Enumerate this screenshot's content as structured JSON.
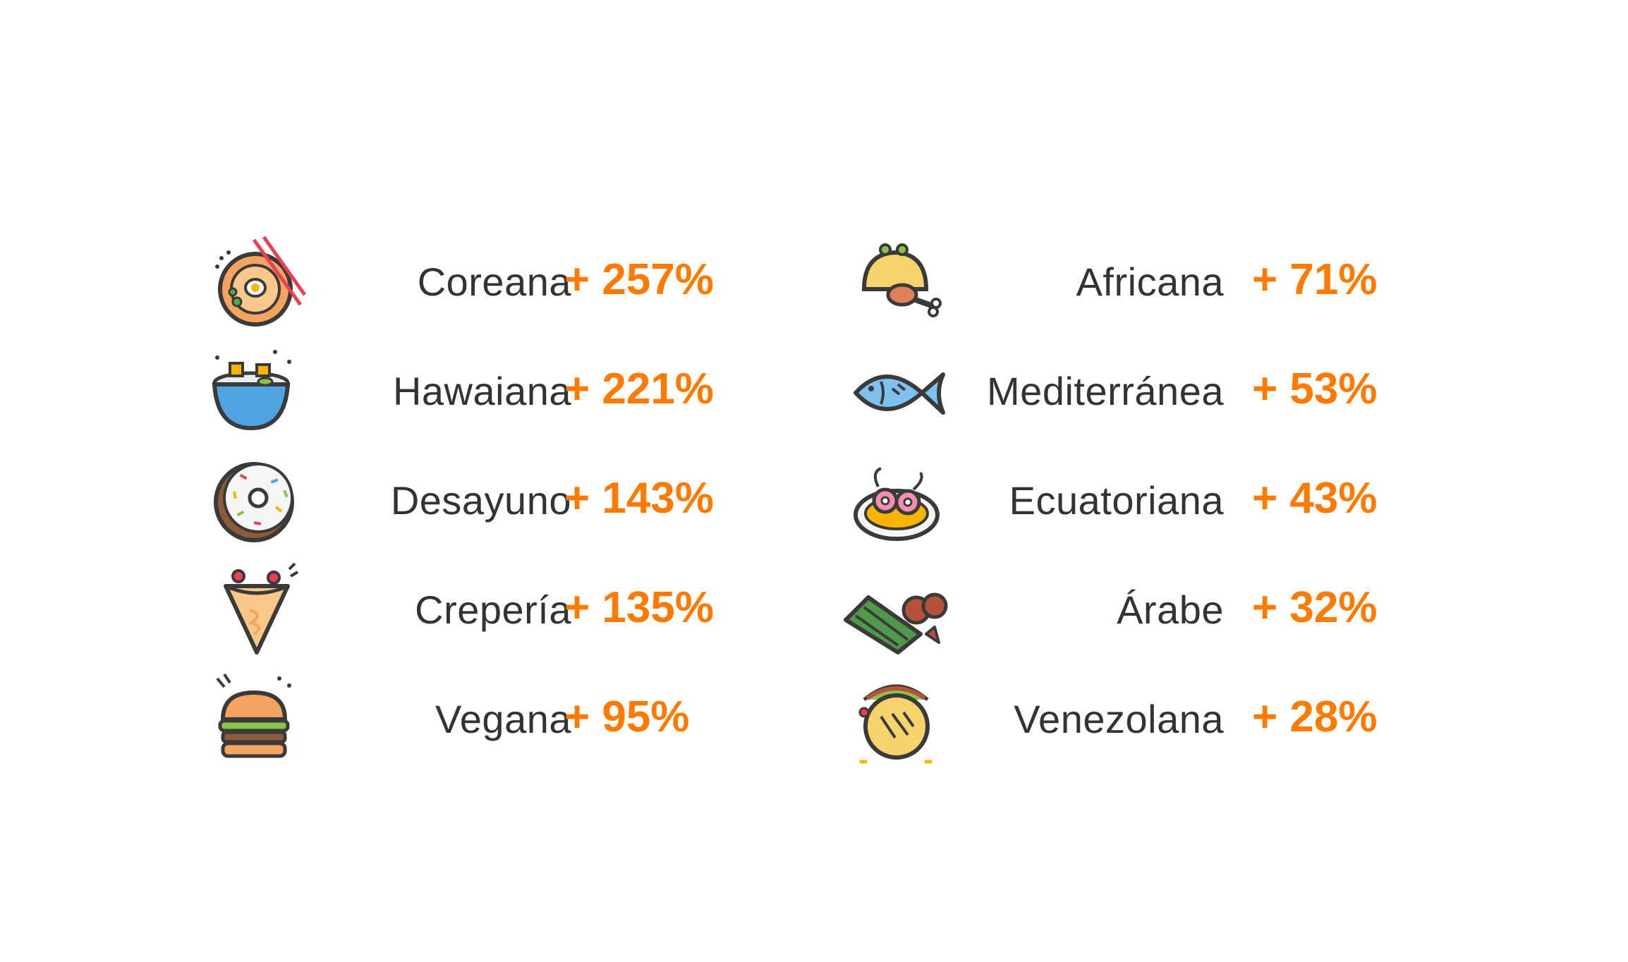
{
  "accent_color": "#FF7A00",
  "left": [
    {
      "icon": "ramen-bowl-icon",
      "name": "Coreana",
      "pct": "+ 257%"
    },
    {
      "icon": "poke-bowl-icon",
      "name": "Hawaiana",
      "pct": "+ 221%"
    },
    {
      "icon": "donut-icon",
      "name": "Desayuno",
      "pct": "+ 143%"
    },
    {
      "icon": "crepe-icon",
      "name": "Crepería",
      "pct": "+ 135%"
    },
    {
      "icon": "burger-icon",
      "name": "Vegana",
      "pct": "+ 95%"
    }
  ],
  "right": [
    {
      "icon": "empanada-drumstick-icon",
      "name": "Africana",
      "pct": "+ 71%"
    },
    {
      "icon": "fish-icon",
      "name": "Mediterránea",
      "pct": "+ 53%"
    },
    {
      "icon": "shrimp-plate-icon",
      "name": "Ecuatoriana",
      "pct": "+ 43%"
    },
    {
      "icon": "falafel-wrap-icon",
      "name": "Árabe",
      "pct": "+ 32%"
    },
    {
      "icon": "arepa-icon",
      "name": "Venezolana",
      "pct": "+ 28%"
    }
  ]
}
